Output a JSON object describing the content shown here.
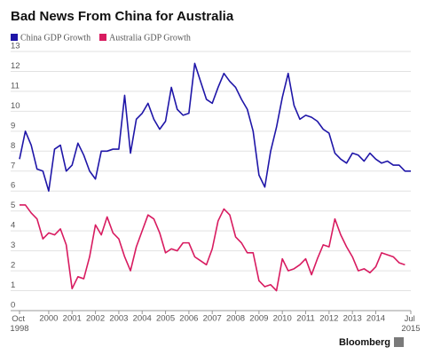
{
  "chart_data": {
    "type": "line",
    "title": "Bad News From China for Australia",
    "source": "Bloomberg",
    "x": [
      1998.75,
      1999,
      1999.25,
      1999.5,
      1999.75,
      2000,
      2000.25,
      2000.5,
      2000.75,
      2001,
      2001.25,
      2001.5,
      2001.75,
      2002,
      2002.25,
      2002.5,
      2002.75,
      2003,
      2003.25,
      2003.5,
      2003.75,
      2004,
      2004.25,
      2004.5,
      2004.75,
      2005,
      2005.25,
      2005.5,
      2005.75,
      2006,
      2006.25,
      2006.5,
      2006.75,
      2007,
      2007.25,
      2007.5,
      2007.75,
      2008,
      2008.25,
      2008.5,
      2008.75,
      2009,
      2009.25,
      2009.5,
      2009.75,
      2010,
      2010.25,
      2010.5,
      2010.75,
      2011,
      2011.25,
      2011.5,
      2011.75,
      2012,
      2012.25,
      2012.5,
      2012.75,
      2013,
      2013.25,
      2013.5,
      2013.75,
      2014,
      2014.25,
      2014.5,
      2014.75,
      2015,
      2015.25,
      2015.5
    ],
    "series": [
      {
        "name": "China GDP Growth",
        "color": "#1f16a8",
        "values": [
          7.6,
          9.0,
          8.3,
          7.1,
          7.0,
          6.0,
          8.1,
          8.3,
          7.0,
          7.3,
          8.4,
          7.8,
          7.0,
          6.6,
          8.0,
          8.0,
          8.1,
          8.1,
          10.8,
          7.9,
          9.6,
          9.9,
          10.4,
          9.6,
          9.1,
          9.5,
          11.2,
          10.1,
          9.8,
          9.9,
          12.4,
          11.5,
          10.6,
          10.4,
          11.2,
          11.9,
          11.5,
          11.2,
          10.6,
          10.1,
          9.0,
          6.8,
          6.2,
          8.0,
          9.2,
          10.7,
          11.9,
          10.3,
          9.6,
          9.8,
          9.7,
          9.5,
          9.1,
          8.9,
          7.9,
          7.6,
          7.4,
          7.9,
          7.8,
          7.5,
          7.9,
          7.6,
          7.4,
          7.5,
          7.3,
          7.3,
          7.0,
          7.0
        ]
      },
      {
        "name": "Australia GDP Growth",
        "color": "#d81b60",
        "values": [
          5.3,
          5.3,
          4.9,
          4.6,
          3.6,
          3.9,
          3.8,
          4.1,
          3.3,
          1.1,
          1.7,
          1.6,
          2.7,
          4.3,
          3.8,
          4.7,
          3.9,
          3.6,
          2.7,
          2.0,
          3.2,
          4.0,
          4.8,
          4.6,
          3.9,
          2.9,
          3.1,
          3.0,
          3.4,
          3.4,
          2.7,
          2.5,
          2.3,
          3.1,
          4.5,
          5.1,
          4.8,
          3.7,
          3.4,
          2.9,
          2.9,
          1.5,
          1.2,
          1.3,
          1.0,
          2.6,
          2.0,
          2.1,
          2.3,
          2.6,
          1.8,
          2.6,
          3.3,
          3.2,
          4.6,
          3.8,
          3.2,
          2.7,
          2.0,
          2.1,
          1.9,
          2.2,
          2.9,
          2.8,
          2.7,
          2.4,
          2.3,
          null
        ]
      }
    ],
    "xlim": [
      1998.75,
      2015.5
    ],
    "xticks": [
      {
        "value": 1998.75,
        "label": "Oct 1998"
      },
      2000,
      2001,
      2002,
      2003,
      2004,
      2005,
      2006,
      2007,
      2008,
      2009,
      2010,
      2011,
      2012,
      2013,
      2014,
      {
        "value": 2015.5,
        "label": "Jul 2015"
      }
    ],
    "ylim": [
      0,
      13
    ],
    "yticks": [
      0,
      1,
      2,
      3,
      4,
      5,
      6,
      7,
      8,
      9,
      10,
      11,
      12,
      13
    ],
    "grid": true,
    "legend": "top-left"
  }
}
